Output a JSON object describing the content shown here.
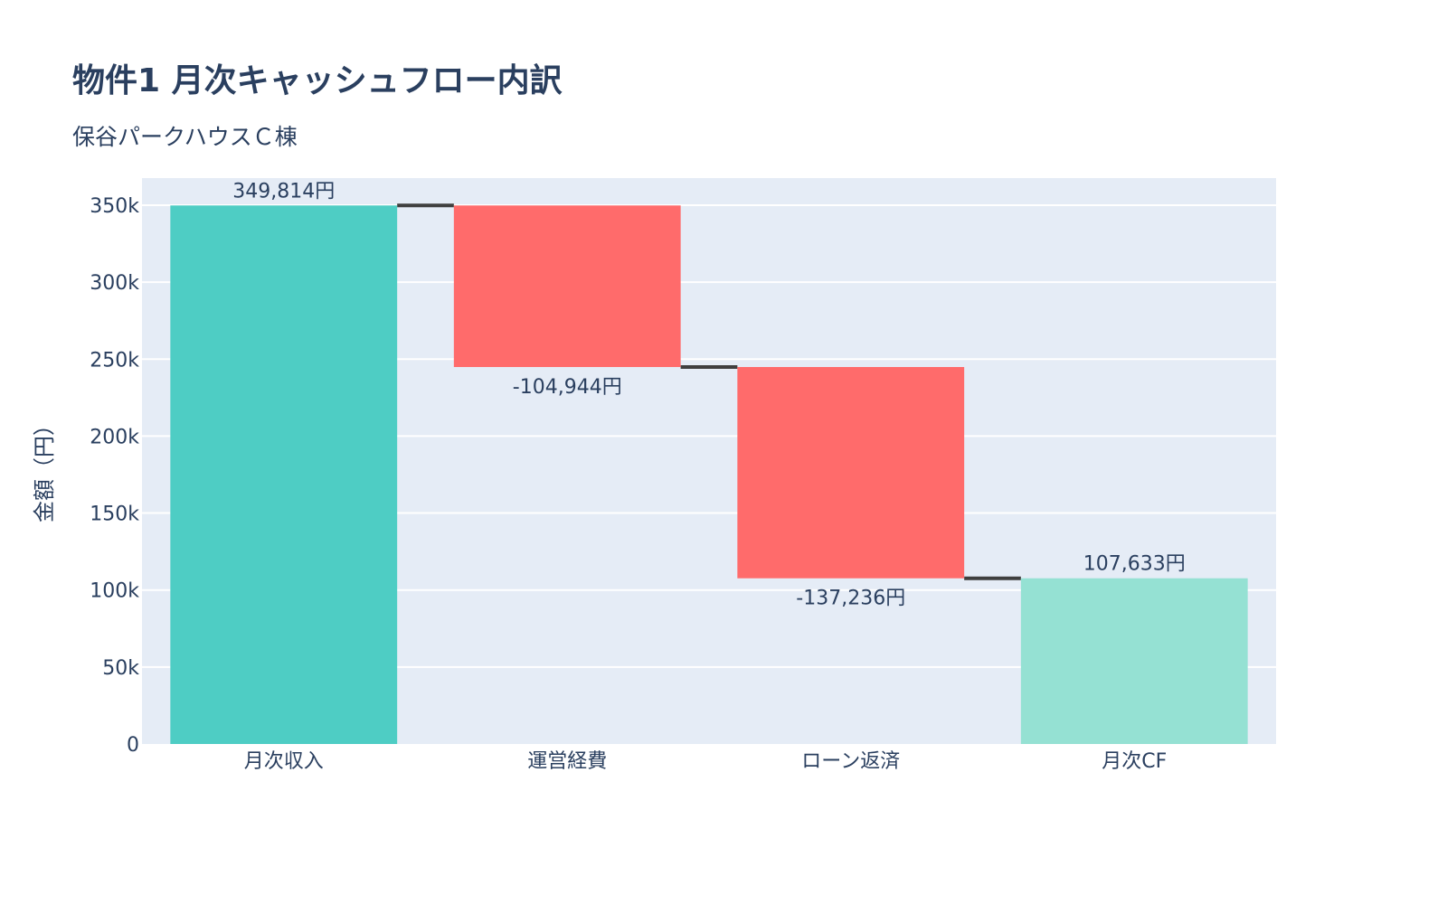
{
  "chart_data": {
    "type": "waterfall",
    "title": "物件1 月次キャッシュフロー内訳",
    "subtitle": "保谷パークハウスＣ棟",
    "xlabel": "",
    "ylabel": "金額（円）",
    "categories": [
      "月次収入",
      "運営経費",
      "ローン返済",
      "月次CF"
    ],
    "measures": [
      "relative",
      "relative",
      "relative",
      "total"
    ],
    "values": [
      349814,
      -104944,
      -137236,
      107633
    ],
    "text_labels": [
      "349,814円",
      "-104,944円",
      "-137,236円",
      "107,633円"
    ],
    "ylim": [
      0,
      367600
    ],
    "yticks": [
      0,
      50000,
      100000,
      150000,
      200000,
      250000,
      300000,
      350000
    ],
    "ytick_labels": [
      "0",
      "50k",
      "100k",
      "150k",
      "200k",
      "250k",
      "300k",
      "350k"
    ],
    "grid": true,
    "colors": {
      "increasing": "#4ECDC4",
      "decreasing": "#FF6B6B",
      "total": "#95E1D3",
      "connector": "#3f3f3f",
      "plot_bg": "#E5ECF6"
    }
  }
}
